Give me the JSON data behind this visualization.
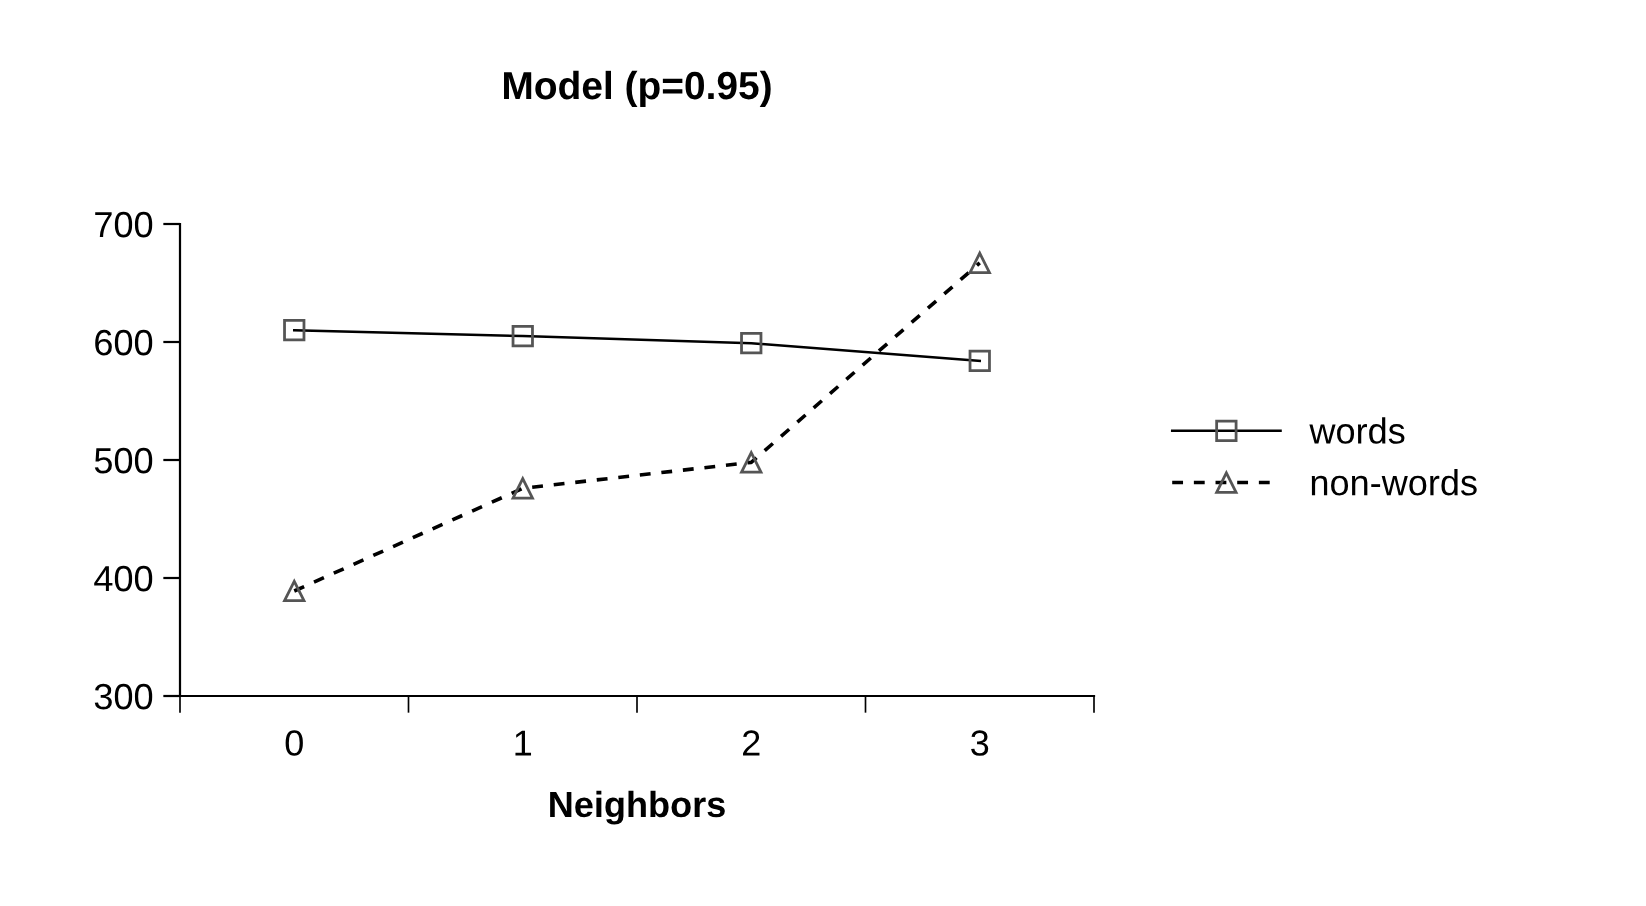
{
  "chart_data": {
    "type": "line",
    "title": "Model (p=0.95)",
    "xlabel": "Neighbors",
    "categories": [
      "0",
      "1",
      "2",
      "3"
    ],
    "series": [
      {
        "name": "words",
        "color": "#000000",
        "marker": "square",
        "line_style": "solid",
        "values": [
          610,
          605,
          599,
          584
        ]
      },
      {
        "name": "non-words",
        "color": "#000000",
        "marker": "triangle",
        "line_style": "dashed",
        "values": [
          389,
          476,
          498,
          667
        ]
      }
    ],
    "ylim": [
      300,
      700
    ],
    "yticks": [
      300,
      400,
      500,
      600,
      700
    ],
    "grid": false,
    "legend": "right"
  }
}
